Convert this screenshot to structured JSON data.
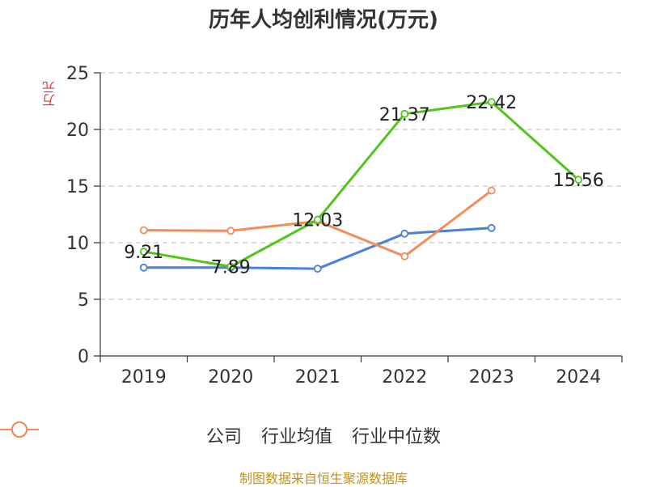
{
  "chart_data": {
    "type": "line",
    "title": "历年人均创利情况(万元)",
    "ylabel": "万元",
    "categories": [
      "2019",
      "2020",
      "2021",
      "2022",
      "2023",
      "2024"
    ],
    "ylim": [
      0,
      25
    ],
    "yticks": [
      0,
      5,
      10,
      15,
      20,
      25
    ],
    "grid": true,
    "legend_position": "bottom",
    "series": [
      {
        "name": "公司",
        "color": "#52c41a",
        "values": [
          9.21,
          7.89,
          12.03,
          21.37,
          22.42,
          15.56
        ],
        "labels": [
          "9.21",
          "7.89",
          "12.03",
          "21.37",
          "22.42",
          "15.56"
        ]
      },
      {
        "name": "行业均值",
        "color": "#4a7fdc",
        "values": [
          7.8,
          7.8,
          7.7,
          10.8,
          11.3,
          null
        ]
      },
      {
        "name": "行业中位数",
        "color": "#f28c5b",
        "values": [
          11.1,
          11.05,
          11.9,
          8.8,
          14.6,
          null
        ]
      }
    ]
  },
  "source": "制图数据来自恒生聚源数据库"
}
